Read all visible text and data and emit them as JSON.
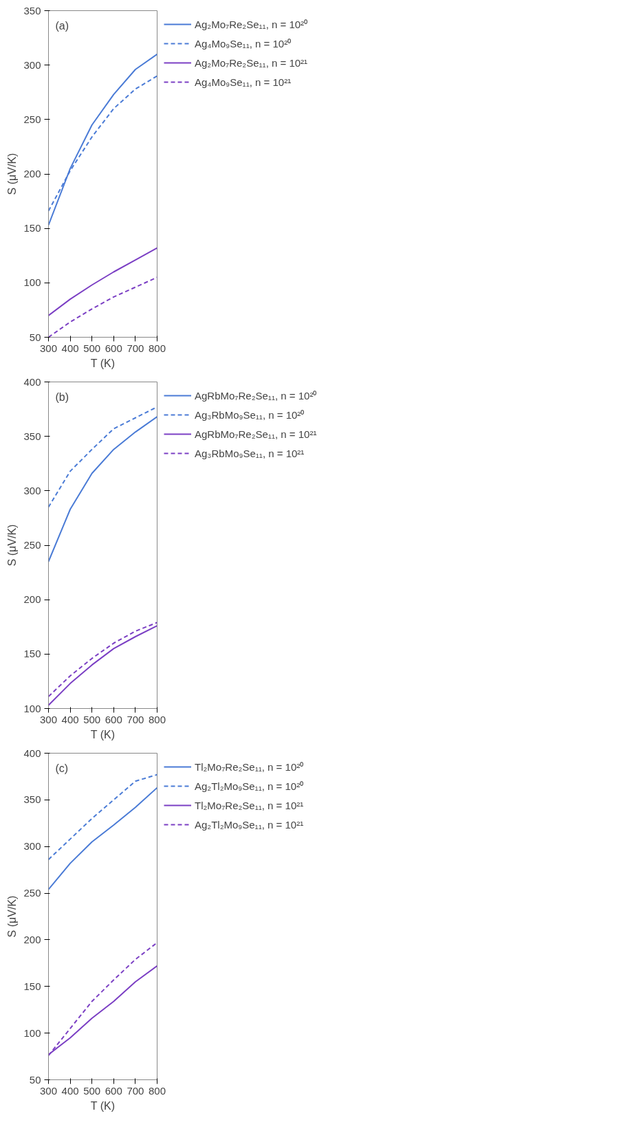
{
  "chart_data": [
    {
      "type": "line",
      "annotations": [
        "(a)"
      ],
      "xlabel": "T (K)",
      "ylabel": "S (μV/K)",
      "x": [
        300,
        400,
        500,
        600,
        700,
        800
      ],
      "xlim": [
        300,
        800
      ],
      "xticks": [
        300,
        400,
        500,
        600,
        700,
        800
      ],
      "ylim": [
        50,
        350
      ],
      "yticks": [
        50,
        100,
        150,
        200,
        250,
        300,
        350
      ],
      "grid": false,
      "legend": "right",
      "series": [
        {
          "name": "Ag₂Mo₇Re₂Se₁₁, n = 10²⁰",
          "color": "#4a7bd6",
          "line_style": "solid",
          "values": [
            153,
            205,
            245,
            273,
            296,
            310
          ]
        },
        {
          "name": "Ag₄Mo₉Se₁₁, n = 10²⁰",
          "color": "#4a7bd6",
          "line_style": "dashed",
          "values": [
            166,
            203,
            234,
            260,
            278,
            290
          ]
        },
        {
          "name": "Ag₂Mo₇Re₂Se₁₁, n = 10²¹",
          "color": "#7b3fc4",
          "line_style": "solid",
          "values": [
            70,
            85,
            98,
            110,
            121,
            132
          ]
        },
        {
          "name": "Ag₄Mo₉Se₁₁, n = 10²¹",
          "color": "#7b3fc4",
          "line_style": "dashed",
          "values": [
            50,
            64,
            76,
            87,
            96,
            105
          ]
        }
      ]
    },
    {
      "type": "line",
      "annotations": [
        "(b)"
      ],
      "xlabel": "T (K)",
      "ylabel": "S (μV/K)",
      "x": [
        300,
        400,
        500,
        600,
        700,
        800
      ],
      "xlim": [
        300,
        800
      ],
      "xticks": [
        300,
        400,
        500,
        600,
        700,
        800
      ],
      "ylim": [
        100,
        400
      ],
      "yticks": [
        100,
        150,
        200,
        250,
        300,
        350,
        400
      ],
      "grid": false,
      "legend": "right",
      "series": [
        {
          "name": "AgRbMo₇Re₂Se₁₁, n = 10²⁰",
          "color": "#4a7bd6",
          "line_style": "solid",
          "values": [
            235,
            283,
            316,
            338,
            354,
            368
          ]
        },
        {
          "name": "Ag₃RbMo₉Se₁₁, n = 10²⁰",
          "color": "#4a7bd6",
          "line_style": "dashed",
          "values": [
            285,
            318,
            338,
            357,
            367,
            377
          ]
        },
        {
          "name": "AgRbMo₇Re₂Se₁₁, n = 10²¹",
          "color": "#7b3fc4",
          "line_style": "solid",
          "values": [
            103,
            123,
            140,
            155,
            166,
            176
          ]
        },
        {
          "name": "Ag₃RbMo₉Se₁₁, n = 10²¹",
          "color": "#7b3fc4",
          "line_style": "dashed",
          "values": [
            111,
            130,
            146,
            160,
            171,
            179
          ]
        }
      ]
    },
    {
      "type": "line",
      "annotations": [
        "(c)"
      ],
      "xlabel": "T (K)",
      "ylabel": "S (μV/K)",
      "x": [
        300,
        400,
        500,
        600,
        700,
        800
      ],
      "xlim": [
        300,
        800
      ],
      "xticks": [
        300,
        400,
        500,
        600,
        700,
        800
      ],
      "ylim": [
        50,
        400
      ],
      "yticks": [
        50,
        100,
        150,
        200,
        250,
        300,
        350,
        400
      ],
      "grid": false,
      "legend": "right",
      "series": [
        {
          "name": "Tl₂Mo₇Re₂Se₁₁, n = 10²⁰",
          "color": "#4a7bd6",
          "line_style": "solid",
          "values": [
            254,
            282,
            305,
            323,
            342,
            363
          ]
        },
        {
          "name": "Ag₂Tl₂Mo₉Se₁₁, n = 10²⁰",
          "color": "#4a7bd6",
          "line_style": "dashed",
          "values": [
            286,
            308,
            330,
            350,
            370,
            377
          ]
        },
        {
          "name": "Tl₂Mo₇Re₂Se₁₁, n = 10²¹",
          "color": "#7b3fc4",
          "line_style": "solid",
          "values": [
            77,
            95,
            116,
            134,
            155,
            172
          ]
        },
        {
          "name": "Ag₂Tl₂Mo₉Se₁₁, n = 10²¹",
          "color": "#7b3fc4",
          "line_style": "dashed",
          "values": [
            76,
            105,
            134,
            157,
            179,
            197
          ]
        }
      ]
    }
  ]
}
